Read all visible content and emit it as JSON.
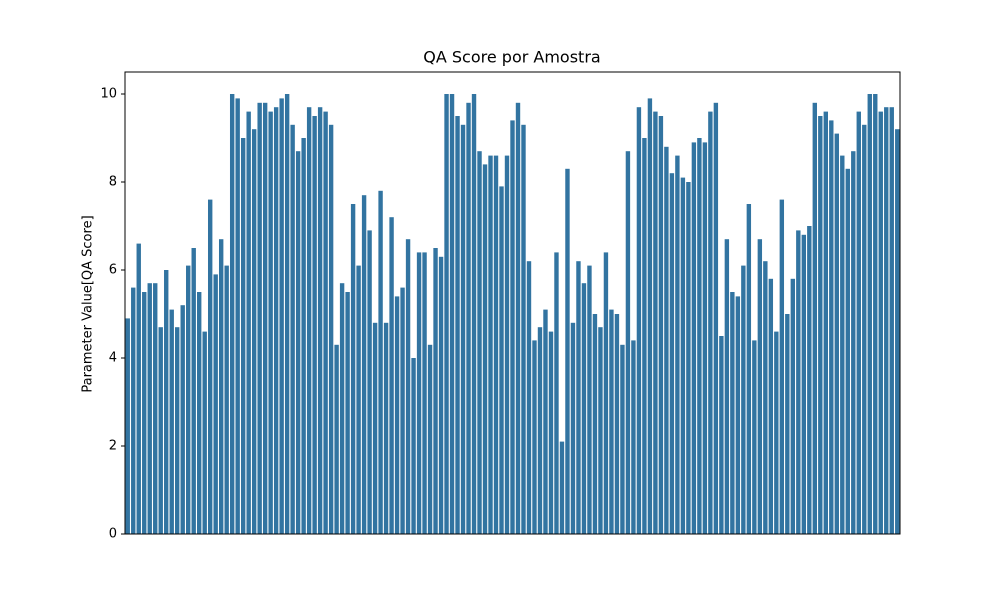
{
  "chart_data": {
    "type": "bar",
    "title": "QA Score por Amostra",
    "y_label": "Parameter Value[QA Score]",
    "color": "#3274a1",
    "values": [
      4.9,
      5.6,
      6.6,
      5.5,
      5.7,
      5.7,
      4.7,
      6.0,
      5.1,
      4.7,
      5.2,
      6.1,
      6.5,
      5.5,
      4.6,
      7.6,
      5.9,
      6.7,
      6.1,
      10.0,
      9.9,
      9.0,
      9.6,
      9.2,
      9.8,
      9.8,
      9.6,
      9.7,
      9.9,
      10.0,
      9.3,
      8.7,
      9.0,
      9.7,
      9.5,
      9.7,
      9.6,
      9.3,
      4.3,
      5.7,
      5.5,
      7.5,
      6.1,
      7.7,
      6.9,
      4.8,
      7.8,
      4.8,
      7.2,
      5.4,
      5.6,
      6.7,
      4.0,
      6.4,
      6.4,
      4.3,
      6.5,
      6.3,
      10.0,
      10.0,
      9.5,
      9.3,
      9.8,
      10.0,
      8.7,
      8.4,
      8.6,
      8.6,
      7.9,
      8.6,
      9.4,
      9.8,
      9.3,
      6.2,
      4.4,
      4.7,
      5.1,
      4.6,
      6.4,
      2.1,
      8.3,
      4.8,
      6.2,
      5.7,
      6.1,
      5.0,
      4.7,
      6.4,
      5.1,
      5.0,
      4.3,
      8.7,
      4.4,
      9.7,
      9.0,
      9.9,
      9.6,
      9.5,
      8.8,
      8.2,
      8.6,
      8.1,
      8.0,
      8.9,
      9.0,
      8.9,
      9.6,
      9.8,
      4.5,
      6.7,
      5.5,
      5.4,
      6.1,
      7.5,
      4.4,
      6.7,
      6.2,
      5.8,
      4.6,
      7.6,
      5.0,
      5.8,
      6.9,
      6.8,
      7.0,
      9.8,
      9.5,
      9.6,
      9.4,
      9.1,
      8.6,
      8.3,
      8.7,
      9.6,
      9.3,
      10.0,
      10.0,
      9.6,
      9.7,
      9.7,
      9.2
    ],
    "ylim": [
      0,
      10.5
    ],
    "yticks": [
      0,
      2,
      4,
      6,
      8,
      10
    ]
  }
}
